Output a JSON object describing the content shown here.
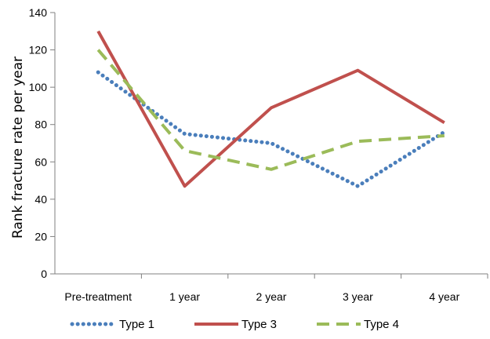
{
  "chart_data": {
    "type": "line",
    "title": "",
    "xlabel": "",
    "ylabel": "Rank fracture rate per year",
    "categories": [
      "Pre-treatment",
      "1 year",
      "2 year",
      "3 year",
      "4 year"
    ],
    "ylim": [
      0,
      140
    ],
    "yticks": [
      0,
      20,
      40,
      60,
      80,
      100,
      120,
      140
    ],
    "grid": false,
    "legend_position": "bottom",
    "series": [
      {
        "name": "Type 1",
        "values": [
          108,
          75,
          70,
          47,
          76
        ],
        "color": "#4a7ebb",
        "style": "dotted"
      },
      {
        "name": "Type 3",
        "values": [
          130,
          47,
          89,
          109,
          81
        ],
        "color": "#c0504d",
        "style": "solid"
      },
      {
        "name": "Type 4",
        "values": [
          120,
          66,
          56,
          71,
          74
        ],
        "color": "#9bbb59",
        "style": "dashed"
      }
    ]
  }
}
